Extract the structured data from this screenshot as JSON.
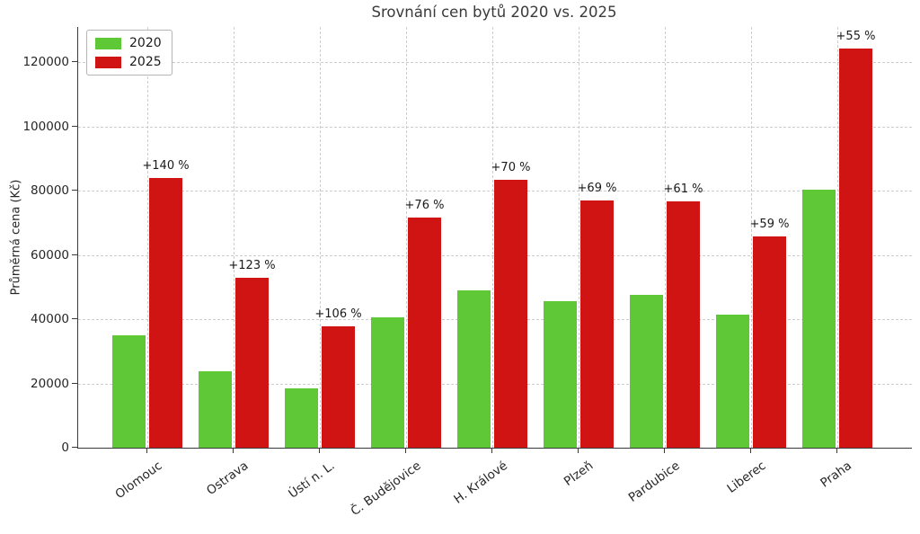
{
  "chart_data": {
    "type": "bar",
    "title": "Srovnání cen bytů 2020 vs. 2025",
    "xlabel": "",
    "ylabel": "Průměrná cena (Kč)",
    "categories": [
      "Olomouc",
      "Ostrava",
      "Ústí n. L.",
      "Č. Budějovice",
      "H. Králové",
      "Plzeň",
      "Pardubice",
      "Liberec",
      "Praha"
    ],
    "series": [
      {
        "name": "2020",
        "color": "#5fc837",
        "values": [
          35000,
          23800,
          18400,
          40700,
          49000,
          45500,
          47700,
          41300,
          80200
        ]
      },
      {
        "name": "2025",
        "color": "#d01414",
        "values": [
          84000,
          53000,
          37900,
          71600,
          83300,
          76900,
          76800,
          65700,
          124300
        ]
      }
    ],
    "annotations": [
      "+140 %",
      "+123 %",
      "+106 %",
      "+76 %",
      "+70 %",
      "+69 %",
      "+61 %",
      "+59 %",
      "+55 %"
    ],
    "yticks": [
      0,
      20000,
      40000,
      60000,
      80000,
      100000,
      120000
    ],
    "ylim": [
      0,
      131000
    ],
    "grid": true,
    "grid_style": "dashed",
    "legend_position": "upper left",
    "colors": {
      "axis": "#3a3a3a",
      "gridline": "#cccccc",
      "text": "#262626"
    }
  }
}
